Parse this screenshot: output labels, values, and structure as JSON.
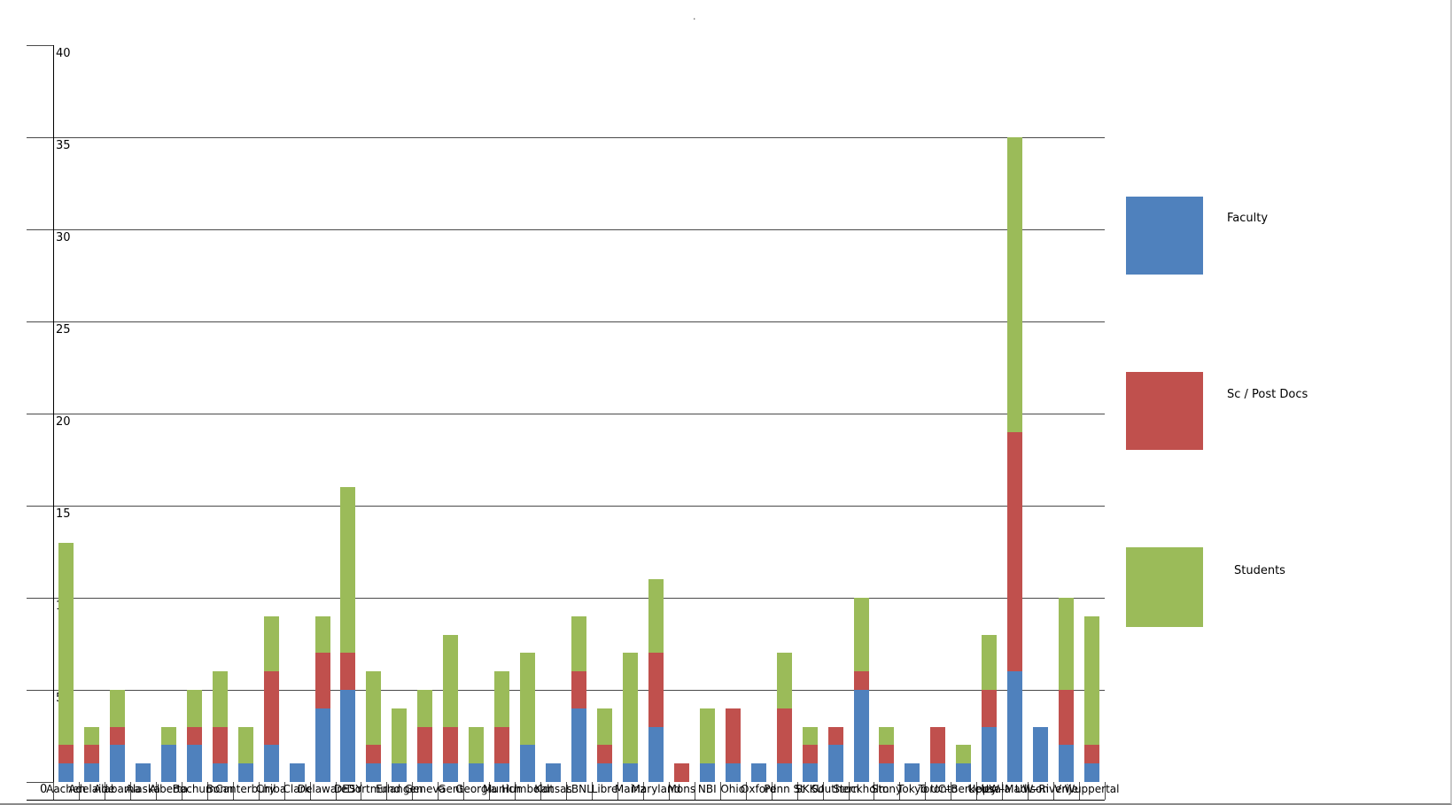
{
  "window": {
    "background": "#ffffff",
    "title_artifact": "."
  },
  "chart_data": {
    "type": "bar",
    "stacked": true,
    "title": "",
    "xlabel": "",
    "ylabel": "",
    "ylim": [
      0,
      40
    ],
    "y_ticks": [
      0,
      5,
      10,
      15,
      20,
      25,
      30,
      35,
      40
    ],
    "grid": true,
    "legend_position": "right",
    "categories": [
      "Aachen",
      "Adelaide",
      "Alabama",
      "Alaska",
      "Alberta",
      "Bochum",
      "Bonn",
      "Canterbury",
      "Chiba",
      "Clark",
      "Delaware",
      "DESY",
      "Dortmund",
      "Erlangen",
      "Geneva",
      "Gent",
      "Georgia",
      "Munich",
      "Humboldt",
      "Kansas",
      "LBNL",
      "Libre",
      "Mainz",
      "Maryland",
      "Mons",
      "NBI",
      "Ohio",
      "Oxford",
      "Penn St",
      "SKKU",
      "Southern",
      "Stockholm",
      "Stony",
      "Tokyo",
      "Toronto",
      "UC–Berkeley",
      "Uppsala",
      "UW–Madison",
      "UW–River",
      "Vrije",
      "Wuppertal"
    ],
    "series": [
      {
        "name": "Faculty",
        "color": "#4F81BD",
        "values": [
          1,
          1,
          2,
          1,
          2,
          2,
          1,
          1,
          2,
          1,
          4,
          5,
          1,
          1,
          1,
          1,
          1,
          1,
          2,
          1,
          4,
          1,
          1,
          3,
          0,
          1,
          1,
          1,
          1,
          1,
          2,
          5,
          1,
          1,
          1,
          1,
          3,
          6,
          3,
          2,
          1
        ]
      },
      {
        "name": "Sc / Post Docs",
        "color": "#C0504D",
        "values": [
          1,
          1,
          1,
          0,
          0,
          1,
          2,
          0,
          4,
          0,
          3,
          2,
          1,
          0,
          2,
          2,
          0,
          2,
          0,
          0,
          2,
          1,
          0,
          4,
          1,
          0,
          3,
          0,
          3,
          1,
          1,
          1,
          1,
          0,
          2,
          0,
          2,
          13,
          0,
          3,
          1
        ]
      },
      {
        "name": "Students",
        "color": "#9BBB59",
        "values": [
          11,
          1,
          2,
          0,
          1,
          2,
          3,
          2,
          3,
          0,
          2,
          9,
          4,
          3,
          2,
          5,
          2,
          3,
          5,
          0,
          3,
          2,
          6,
          4,
          0,
          3,
          0,
          0,
          3,
          1,
          0,
          4,
          1,
          0,
          0,
          1,
          3,
          16,
          0,
          5,
          7
        ]
      }
    ]
  },
  "legend": {
    "entries": [
      {
        "label": "Faculty",
        "color": "#4F81BD"
      },
      {
        "label": "Sc / Post Docs",
        "color": "#C0504D"
      },
      {
        "label": "Students",
        "color": "#9BBB59"
      }
    ]
  }
}
